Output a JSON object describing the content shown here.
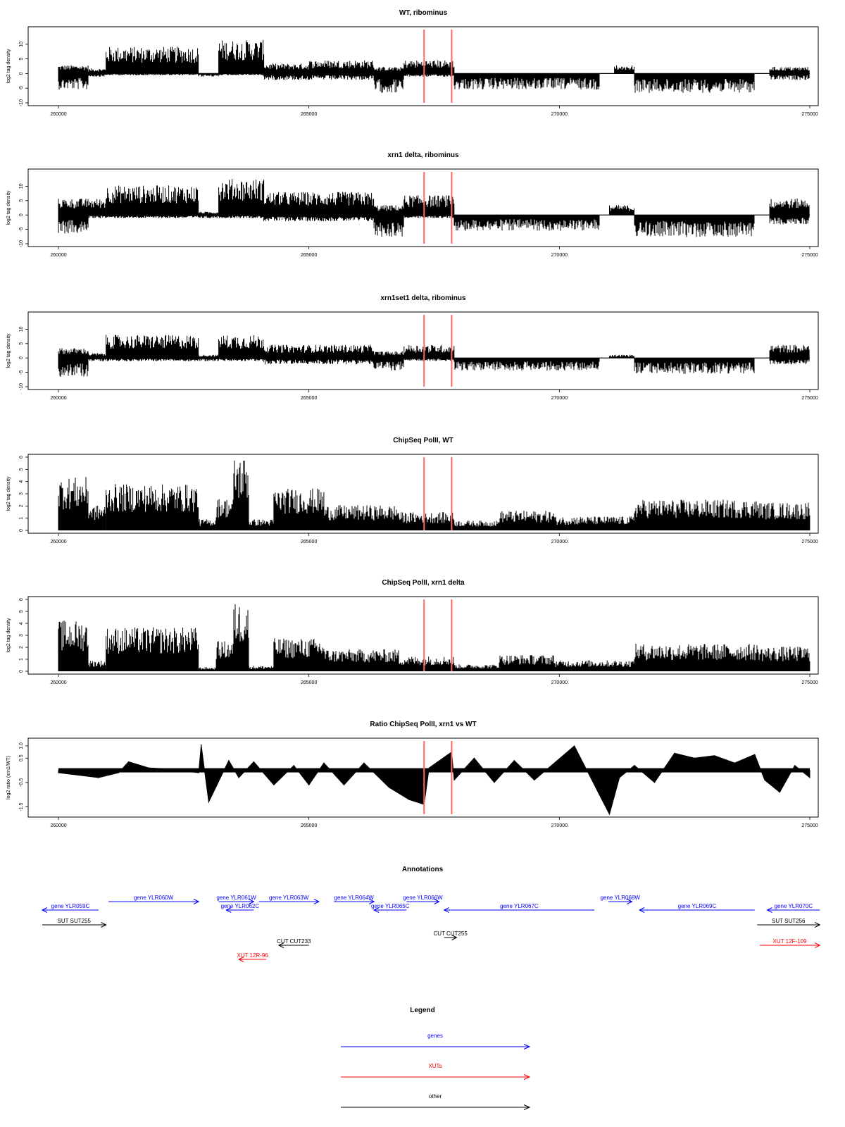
{
  "colors": {
    "genes": "#0000ff",
    "xuts": "#ff0000",
    "other": "#000000",
    "marker": "#ff6666",
    "bars": "#000000"
  },
  "chart_data": [
    {
      "type": "bar",
      "title": "WT, ribominus",
      "ylabel": "log2 tag density",
      "ylim": [
        -10,
        15
      ],
      "yticks": [
        "-10",
        "-5",
        "0",
        "5",
        "10"
      ],
      "xlim": [
        260000,
        275000
      ],
      "xticks": [
        "260000",
        "265000",
        "270000",
        "275000"
      ],
      "markers": [
        267300,
        267850
      ],
      "segments": [
        {
          "start": 260000,
          "end": 260600,
          "pos": 2.5,
          "neg": -5
        },
        {
          "start": 260600,
          "end": 260950,
          "pos": 1.5,
          "neg": -1
        },
        {
          "start": 260950,
          "end": 262800,
          "pos": 8,
          "neg": -0.5
        },
        {
          "start": 262800,
          "end": 263200,
          "pos": 0,
          "neg": -1
        },
        {
          "start": 263200,
          "end": 264100,
          "pos": 10,
          "neg": -0.5
        },
        {
          "start": 264100,
          "end": 265000,
          "pos": 3,
          "neg": -2
        },
        {
          "start": 265000,
          "end": 266300,
          "pos": 4,
          "neg": -2
        },
        {
          "start": 266300,
          "end": 266900,
          "pos": 2,
          "neg": -6
        },
        {
          "start": 266900,
          "end": 267900,
          "pos": 4,
          "neg": -1
        },
        {
          "start": 267900,
          "end": 270800,
          "pos": 0,
          "neg": -5
        },
        {
          "start": 271100,
          "end": 271500,
          "pos": 2.5,
          "neg": 0
        },
        {
          "start": 271500,
          "end": 273900,
          "pos": 0,
          "neg": -6
        },
        {
          "start": 274200,
          "end": 275000,
          "pos": 2,
          "neg": -2
        }
      ]
    },
    {
      "type": "bar",
      "title": "xrn1 delta, ribominus",
      "ylabel": "log2 tag density",
      "ylim": [
        -10,
        15
      ],
      "yticks": [
        "-10",
        "-5",
        "0",
        "5",
        "10"
      ],
      "xlim": [
        260000,
        275000
      ],
      "xticks": [
        "260000",
        "265000",
        "270000",
        "275000"
      ],
      "markers": [
        267300,
        267850
      ],
      "segments": [
        {
          "start": 260000,
          "end": 260600,
          "pos": 5,
          "neg": -6
        },
        {
          "start": 260600,
          "end": 260950,
          "pos": 5,
          "neg": -1
        },
        {
          "start": 260950,
          "end": 262800,
          "pos": 9,
          "neg": -1
        },
        {
          "start": 262800,
          "end": 263200,
          "pos": 1,
          "neg": -1
        },
        {
          "start": 263200,
          "end": 264100,
          "pos": 11,
          "neg": -1
        },
        {
          "start": 264100,
          "end": 266300,
          "pos": 7,
          "neg": -2
        },
        {
          "start": 266300,
          "end": 266900,
          "pos": 3,
          "neg": -7
        },
        {
          "start": 266900,
          "end": 267900,
          "pos": 6,
          "neg": -1
        },
        {
          "start": 267900,
          "end": 270800,
          "pos": 0,
          "neg": -5
        },
        {
          "start": 271000,
          "end": 271500,
          "pos": 3,
          "neg": 0
        },
        {
          "start": 271500,
          "end": 273900,
          "pos": 0,
          "neg": -7
        },
        {
          "start": 274200,
          "end": 275000,
          "pos": 5,
          "neg": -3
        }
      ]
    },
    {
      "type": "bar",
      "title": "xrn1set1 delta, ribominus",
      "ylabel": "log2 tag density",
      "ylim": [
        -10,
        15
      ],
      "yticks": [
        "-10",
        "-5",
        "0",
        "5",
        "10"
      ],
      "xlim": [
        260000,
        275000
      ],
      "xticks": [
        "260000",
        "265000",
        "270000",
        "275000"
      ],
      "markers": [
        267300,
        267850
      ],
      "segments": [
        {
          "start": 260000,
          "end": 260600,
          "pos": 3,
          "neg": -6
        },
        {
          "start": 260600,
          "end": 260950,
          "pos": 1.5,
          "neg": -1
        },
        {
          "start": 260950,
          "end": 262800,
          "pos": 7,
          "neg": -1
        },
        {
          "start": 262800,
          "end": 263200,
          "pos": 1,
          "neg": -1
        },
        {
          "start": 263200,
          "end": 264100,
          "pos": 7,
          "neg": -1
        },
        {
          "start": 264100,
          "end": 266300,
          "pos": 4,
          "neg": -2
        },
        {
          "start": 266300,
          "end": 266900,
          "pos": 2,
          "neg": -4
        },
        {
          "start": 266900,
          "end": 267900,
          "pos": 4,
          "neg": -1
        },
        {
          "start": 267900,
          "end": 270800,
          "pos": 0,
          "neg": -4
        },
        {
          "start": 271000,
          "end": 271500,
          "pos": 1,
          "neg": 0
        },
        {
          "start": 271500,
          "end": 273900,
          "pos": 0,
          "neg": -5
        },
        {
          "start": 274200,
          "end": 275000,
          "pos": 4,
          "neg": -2
        }
      ]
    },
    {
      "type": "bar",
      "title": "ChipSeq PolII, WT",
      "ylabel": "log2 tag density",
      "ylim": [
        0,
        6
      ],
      "yticks": [
        "0",
        "1",
        "2",
        "3",
        "4",
        "5",
        "6"
      ],
      "xlim": [
        260000,
        275000
      ],
      "xticks": [
        "260000",
        "265000",
        "270000",
        "275000"
      ],
      "markers": [
        267300,
        267850
      ],
      "segments": [
        {
          "start": 260000,
          "end": 260600,
          "pos": 3.8
        },
        {
          "start": 260600,
          "end": 260950,
          "pos": 1.8
        },
        {
          "start": 260950,
          "end": 262800,
          "pos": 3.3
        },
        {
          "start": 262800,
          "end": 263150,
          "pos": 0.8
        },
        {
          "start": 263150,
          "end": 263500,
          "pos": 2.3
        },
        {
          "start": 263500,
          "end": 263800,
          "pos": 5.3
        },
        {
          "start": 263800,
          "end": 264300,
          "pos": 0.8
        },
        {
          "start": 264300,
          "end": 265300,
          "pos": 3.0
        },
        {
          "start": 265300,
          "end": 266800,
          "pos": 1.8
        },
        {
          "start": 266800,
          "end": 267900,
          "pos": 1.3
        },
        {
          "start": 267900,
          "end": 268800,
          "pos": 0.7
        },
        {
          "start": 268800,
          "end": 269900,
          "pos": 1.4
        },
        {
          "start": 269900,
          "end": 271500,
          "pos": 1.0
        },
        {
          "start": 271500,
          "end": 274000,
          "pos": 2.2
        },
        {
          "start": 274000,
          "end": 275000,
          "pos": 2.0
        }
      ]
    },
    {
      "type": "bar",
      "title": "ChipSeq PolII, xrn1 delta",
      "ylabel": "log2 tag density",
      "ylim": [
        0,
        6
      ],
      "yticks": [
        "0",
        "1",
        "2",
        "3",
        "4",
        "5",
        "6"
      ],
      "xlim": [
        260000,
        275000
      ],
      "xticks": [
        "260000",
        "265000",
        "270000",
        "275000"
      ],
      "markers": [
        267300,
        267850
      ],
      "segments": [
        {
          "start": 260000,
          "end": 260600,
          "pos": 3.7
        },
        {
          "start": 260600,
          "end": 260950,
          "pos": 0.8
        },
        {
          "start": 260950,
          "end": 262800,
          "pos": 3.2
        },
        {
          "start": 262800,
          "end": 263150,
          "pos": 0.3
        },
        {
          "start": 263150,
          "end": 263500,
          "pos": 2.2
        },
        {
          "start": 263500,
          "end": 263800,
          "pos": 5.0
        },
        {
          "start": 263800,
          "end": 264300,
          "pos": 0.4
        },
        {
          "start": 264300,
          "end": 265300,
          "pos": 2.4
        },
        {
          "start": 265300,
          "end": 266800,
          "pos": 1.6
        },
        {
          "start": 266800,
          "end": 267900,
          "pos": 1.1
        },
        {
          "start": 267900,
          "end": 268800,
          "pos": 0.5
        },
        {
          "start": 268800,
          "end": 269900,
          "pos": 1.2
        },
        {
          "start": 269900,
          "end": 271500,
          "pos": 0.8
        },
        {
          "start": 271500,
          "end": 274000,
          "pos": 2.0
        },
        {
          "start": 274000,
          "end": 275000,
          "pos": 1.8
        }
      ]
    },
    {
      "type": "area",
      "title": "Ratio ChipSeq PolII, xrn1 vs WT",
      "ylabel": "log2 ratio (xrn1/WT)",
      "ylim": [
        -1.8,
        1.2
      ],
      "yticks": [
        "-1.5",
        "-0.5",
        "0.5",
        "1.0"
      ],
      "xlim": [
        260000,
        275000
      ],
      "xticks": [
        "260000",
        "265000",
        "270000",
        "275000"
      ],
      "markers": [
        267300,
        267850
      ],
      "x": [
        260000,
        260400,
        260800,
        261200,
        261400,
        261800,
        262200,
        262800,
        262850,
        263000,
        263400,
        263600,
        263900,
        264300,
        264700,
        265000,
        265300,
        265700,
        266100,
        266600,
        267000,
        267300,
        267400,
        267850,
        267900,
        268300,
        268700,
        269100,
        269500,
        269900,
        270300,
        270500,
        270800,
        271000,
        271200,
        271500,
        271900,
        272300,
        272700,
        273100,
        273500,
        273900,
        274100,
        274400,
        274700,
        275000
      ],
      "y": [
        -0.1,
        -0.2,
        -0.3,
        -0.1,
        0.35,
        0.1,
        0.05,
        -0.1,
        1.05,
        -1.3,
        0.4,
        -0.3,
        0.35,
        -0.6,
        0.2,
        -0.6,
        0.3,
        -0.6,
        0.3,
        -0.7,
        -1.2,
        -1.4,
        0.1,
        0.75,
        -0.4,
        0.5,
        -0.5,
        0.4,
        -0.4,
        0.3,
        1.0,
        0.2,
        -1.0,
        -1.8,
        -0.3,
        0.2,
        -0.5,
        0.7,
        0.5,
        0.6,
        0.3,
        0.65,
        -0.4,
        -0.9,
        0.2,
        -0.3
      ]
    }
  ],
  "annotations": {
    "title": "Annotations",
    "items": [
      {
        "label": "gene YLR059C",
        "start": 259500,
        "end": 260800,
        "row": 1,
        "kind": "gene",
        "dir": "left"
      },
      {
        "label": "gene YLR060W",
        "start": 261000,
        "end": 262800,
        "row": 0,
        "kind": "gene",
        "dir": "right"
      },
      {
        "label": "gene YLR061W",
        "start": 263200,
        "end": 263900,
        "row": 0,
        "kind": "gene",
        "dir": "right"
      },
      {
        "label": "gene YLR062C",
        "start": 263350,
        "end": 263900,
        "row": 1,
        "kind": "gene",
        "dir": "left"
      },
      {
        "label": "gene YLR063W",
        "start": 264000,
        "end": 265200,
        "row": 0,
        "kind": "gene",
        "dir": "right"
      },
      {
        "label": "gene YLR064W",
        "start": 265500,
        "end": 266300,
        "row": 0,
        "kind": "gene",
        "dir": "right"
      },
      {
        "label": "gene YLR065C",
        "start": 266300,
        "end": 266950,
        "row": 1,
        "kind": "gene",
        "dir": "left"
      },
      {
        "label": "gene YLR066W",
        "start": 266950,
        "end": 267600,
        "row": 0,
        "kind": "gene",
        "dir": "right"
      },
      {
        "label": "gene YLR067C",
        "start": 267700,
        "end": 270700,
        "row": 1,
        "kind": "gene",
        "dir": "left"
      },
      {
        "label": "gene YLR068W",
        "start": 270980,
        "end": 271450,
        "row": 0,
        "kind": "gene",
        "dir": "right"
      },
      {
        "label": "gene YLR069C",
        "start": 271600,
        "end": 273900,
        "row": 1,
        "kind": "gene",
        "dir": "left"
      },
      {
        "label": "gene YLR070C",
        "start": 274150,
        "end": 275200,
        "row": 1,
        "kind": "gene",
        "dir": "left"
      },
      {
        "label": "SUT SUT255",
        "start": 259600,
        "end": 260950,
        "row": 2,
        "kind": "other",
        "dir": "right"
      },
      {
        "label": "SUT SUT256",
        "start": 273950,
        "end": 275200,
        "row": 2,
        "kind": "other",
        "dir": "right"
      },
      {
        "label": "CUT CUT233",
        "start": 264400,
        "end": 265000,
        "row": 4,
        "kind": "other",
        "dir": "left"
      },
      {
        "label": "CUT CUT255",
        "start": 267700,
        "end": 267950,
        "row": 3,
        "kind": "other",
        "dir": "right"
      },
      {
        "label": "XUT 12R-96",
        "start": 263600,
        "end": 264150,
        "row": 5,
        "kind": "xut",
        "dir": "left"
      },
      {
        "label": "XUT 12F-109",
        "start": 274000,
        "end": 275200,
        "row": 4,
        "kind": "xut",
        "dir": "right"
      }
    ]
  },
  "legend": {
    "title": "Legend",
    "items": [
      {
        "label": "genes",
        "kind": "gene"
      },
      {
        "label": "XUTs",
        "kind": "xut"
      },
      {
        "label": "other",
        "kind": "other"
      }
    ]
  }
}
